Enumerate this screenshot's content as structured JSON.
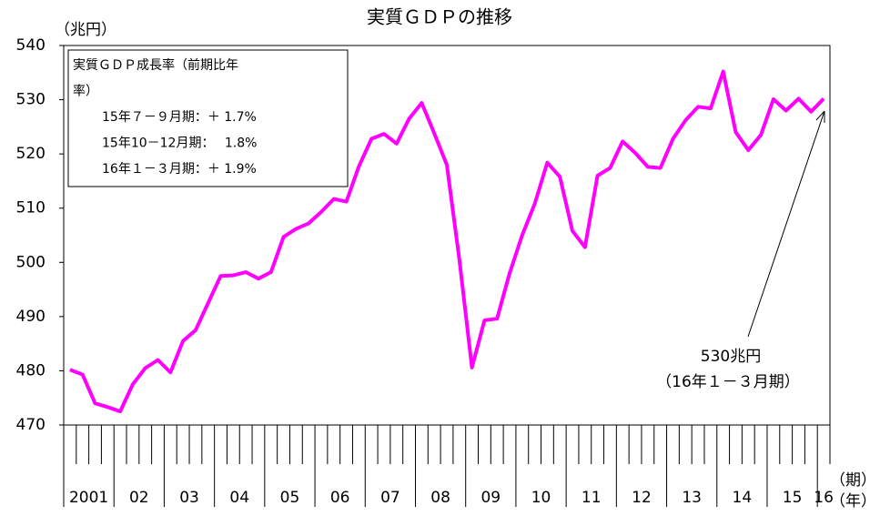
{
  "chart_data": {
    "type": "line",
    "title": "実質ＧＤＰの推移",
    "y_unit": "（兆円）",
    "x_unit_quarter": "（期）",
    "x_unit_year": "（年）",
    "categories": [
      "2001",
      null,
      null,
      null,
      "02",
      null,
      null,
      null,
      "03",
      null,
      null,
      null,
      "04",
      null,
      null,
      null,
      "05",
      null,
      null,
      null,
      "06",
      null,
      null,
      null,
      "07",
      null,
      null,
      null,
      "08",
      null,
      null,
      null,
      "09",
      null,
      null,
      null,
      "10",
      null,
      null,
      null,
      "11",
      null,
      null,
      null,
      "12",
      null,
      null,
      null,
      "13",
      null,
      null,
      null,
      "14",
      null,
      null,
      null,
      "15",
      null,
      null,
      null,
      "16"
    ],
    "series": [
      {
        "name": "実質ＧＤＰ",
        "color": "#ff00ff",
        "values": [
          480.2,
          479.3,
          474.0,
          473.3,
          472.5,
          477.5,
          480.5,
          482.0,
          479.7,
          485.5,
          487.5,
          492.5,
          497.5,
          497.6,
          498.2,
          497.0,
          498.2,
          504.7,
          506.2,
          507.2,
          509.3,
          511.7,
          511.2,
          517.7,
          522.8,
          523.7,
          521.9,
          526.5,
          529.4,
          523.8,
          518.0,
          500.5,
          480.6,
          489.3,
          489.6,
          498.0,
          505.0,
          510.8,
          518.4,
          515.8,
          505.8,
          502.8,
          516.0,
          517.4,
          522.3,
          520.2,
          517.6,
          517.4,
          522.8,
          526.2,
          528.7,
          528.4,
          535.2,
          524.0,
          520.7,
          523.5,
          530.1,
          528.0,
          530.2,
          527.8,
          530.2
        ]
      }
    ],
    "ylim": [
      470,
      540
    ],
    "yticks": [
      470,
      480,
      490,
      500,
      510,
      520,
      530,
      540
    ],
    "box_lines": [
      "実質ＧＤＰ成長率（前期比年",
      "率）",
      "15年７－９月期：＋ 1.7%",
      "15年10－12月期：　 1.8%",
      "16年１－３月期：＋ 1.9%"
    ],
    "annotation": [
      "530兆円",
      "（16年１－３月期）"
    ]
  }
}
